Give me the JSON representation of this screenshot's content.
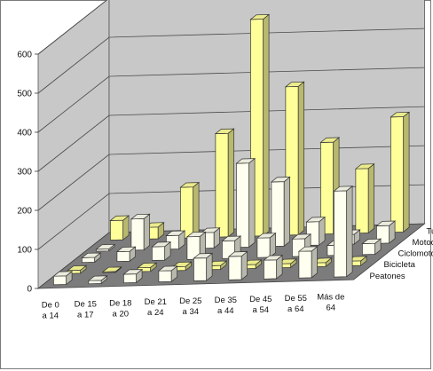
{
  "chart_data": {
    "type": "bar",
    "subtype": "3d-clustered",
    "categories": [
      [
        "De 0",
        "a 14"
      ],
      [
        "De 15",
        "a 17"
      ],
      [
        "De 18",
        "a 20"
      ],
      [
        "De 21",
        "a 24"
      ],
      [
        "De 25",
        "a 34"
      ],
      [
        "De 35",
        "a 44"
      ],
      [
        "De 45",
        "a 54"
      ],
      [
        "De 55",
        "a 64"
      ],
      [
        "Más de",
        "64"
      ]
    ],
    "series": [
      {
        "name": "Peatones",
        "color": "#FFFFF0",
        "values": [
          22,
          8,
          22,
          28,
          58,
          60,
          48,
          68,
          220
        ]
      },
      {
        "name": "Bicicleta",
        "color": "#FFFF99",
        "values": [
          8,
          2,
          10,
          10,
          10,
          10,
          10,
          10,
          12
        ]
      },
      {
        "name": "Ciclomotor",
        "color": "#FFFFF0",
        "values": [
          12,
          25,
          35,
          58,
          45,
          50,
          45,
          26,
          28
        ]
      },
      {
        "name": "Motocicleta",
        "color": "#FFFFF0",
        "values": [
          5,
          80,
          35,
          40,
          215,
          165,
          60,
          25,
          45
        ]
      },
      {
        "name": "Turismo",
        "color": "#FFFF99",
        "values": [
          50,
          30,
          130,
          265,
          555,
          380,
          235,
          165,
          295
        ]
      }
    ],
    "ylim": [
      0,
      600
    ],
    "yticks": [
      "0",
      "100",
      "200",
      "300",
      "400",
      "500",
      "600"
    ],
    "grid": true,
    "legend": "series-axis-right"
  }
}
